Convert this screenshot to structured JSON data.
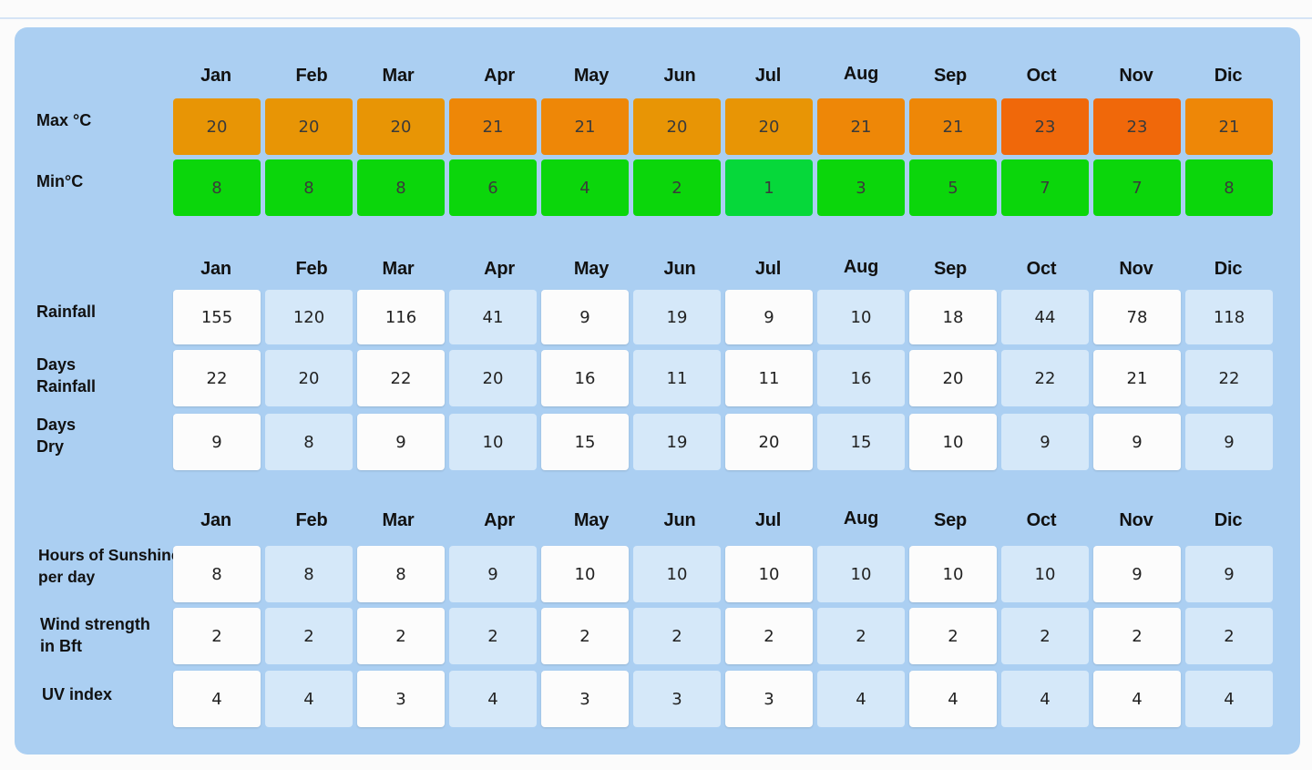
{
  "sections": [
    {
      "months": [
        "Jan",
        "Feb",
        "Mar",
        "Apr",
        "May",
        "Jun",
        "Jul",
        "Aug",
        "Sep",
        "Oct",
        "Nov",
        "Dic"
      ],
      "rows": [
        {
          "label": [
            "Max °C"
          ],
          "values": [
            20,
            20,
            20,
            21,
            21,
            20,
            20,
            21,
            21,
            23,
            23,
            21
          ],
          "colors": [
            "#e89505",
            "#e89505",
            "#e89505",
            "#ee8707",
            "#ee8707",
            "#e89505",
            "#e89505",
            "#ee8707",
            "#ee8707",
            "#f0680a",
            "#f0680a",
            "#ee8707"
          ]
        },
        {
          "label": [
            "Min°C"
          ],
          "values": [
            8,
            8,
            8,
            6,
            4,
            2,
            1,
            3,
            5,
            7,
            7,
            8
          ],
          "colors": [
            "#0bd60b",
            "#0bd60b",
            "#0bd60b",
            "#0bd60b",
            "#0bd60b",
            "#0bd60b",
            "#06d83a",
            "#0bd60b",
            "#0bd60b",
            "#0bd60b",
            "#0bd60b",
            "#0bd60b"
          ]
        }
      ]
    },
    {
      "months": [
        "Jan",
        "Feb",
        "Mar",
        "Apr",
        "May",
        "Jun",
        "Jul",
        "Aug",
        "Sep",
        "Oct",
        "Nov",
        "Dic"
      ],
      "rows": [
        {
          "label": [
            "Rainfall"
          ],
          "values": [
            155,
            120,
            116,
            41,
            9,
            19,
            9,
            10,
            18,
            44,
            78,
            118
          ]
        },
        {
          "label": [
            "Days",
            "Rainfall"
          ],
          "values": [
            22,
            20,
            22,
            20,
            16,
            11,
            11,
            16,
            20,
            22,
            21,
            22
          ]
        },
        {
          "label": [
            "Days",
            "Dry"
          ],
          "values": [
            9,
            8,
            9,
            10,
            15,
            19,
            20,
            15,
            10,
            9,
            9,
            9
          ]
        }
      ]
    },
    {
      "months": [
        "Jan",
        "Feb",
        "Mar",
        "Apr",
        "May",
        "Jun",
        "Jul",
        "Aug",
        "Sep",
        "Oct",
        "Nov",
        "Dic"
      ],
      "rows": [
        {
          "label": [
            "Hours of Sunshine",
            "per day"
          ],
          "values": [
            8,
            8,
            8,
            9,
            10,
            10,
            10,
            10,
            10,
            10,
            9,
            9
          ]
        },
        {
          "label": [
            "Wind strength",
            "in Bft"
          ],
          "values": [
            2,
            2,
            2,
            2,
            2,
            2,
            2,
            2,
            2,
            2,
            2,
            2
          ]
        },
        {
          "label": [
            "UV index"
          ],
          "values": [
            4,
            4,
            3,
            4,
            3,
            3,
            3,
            4,
            4,
            4,
            4,
            4
          ]
        }
      ]
    }
  ]
}
